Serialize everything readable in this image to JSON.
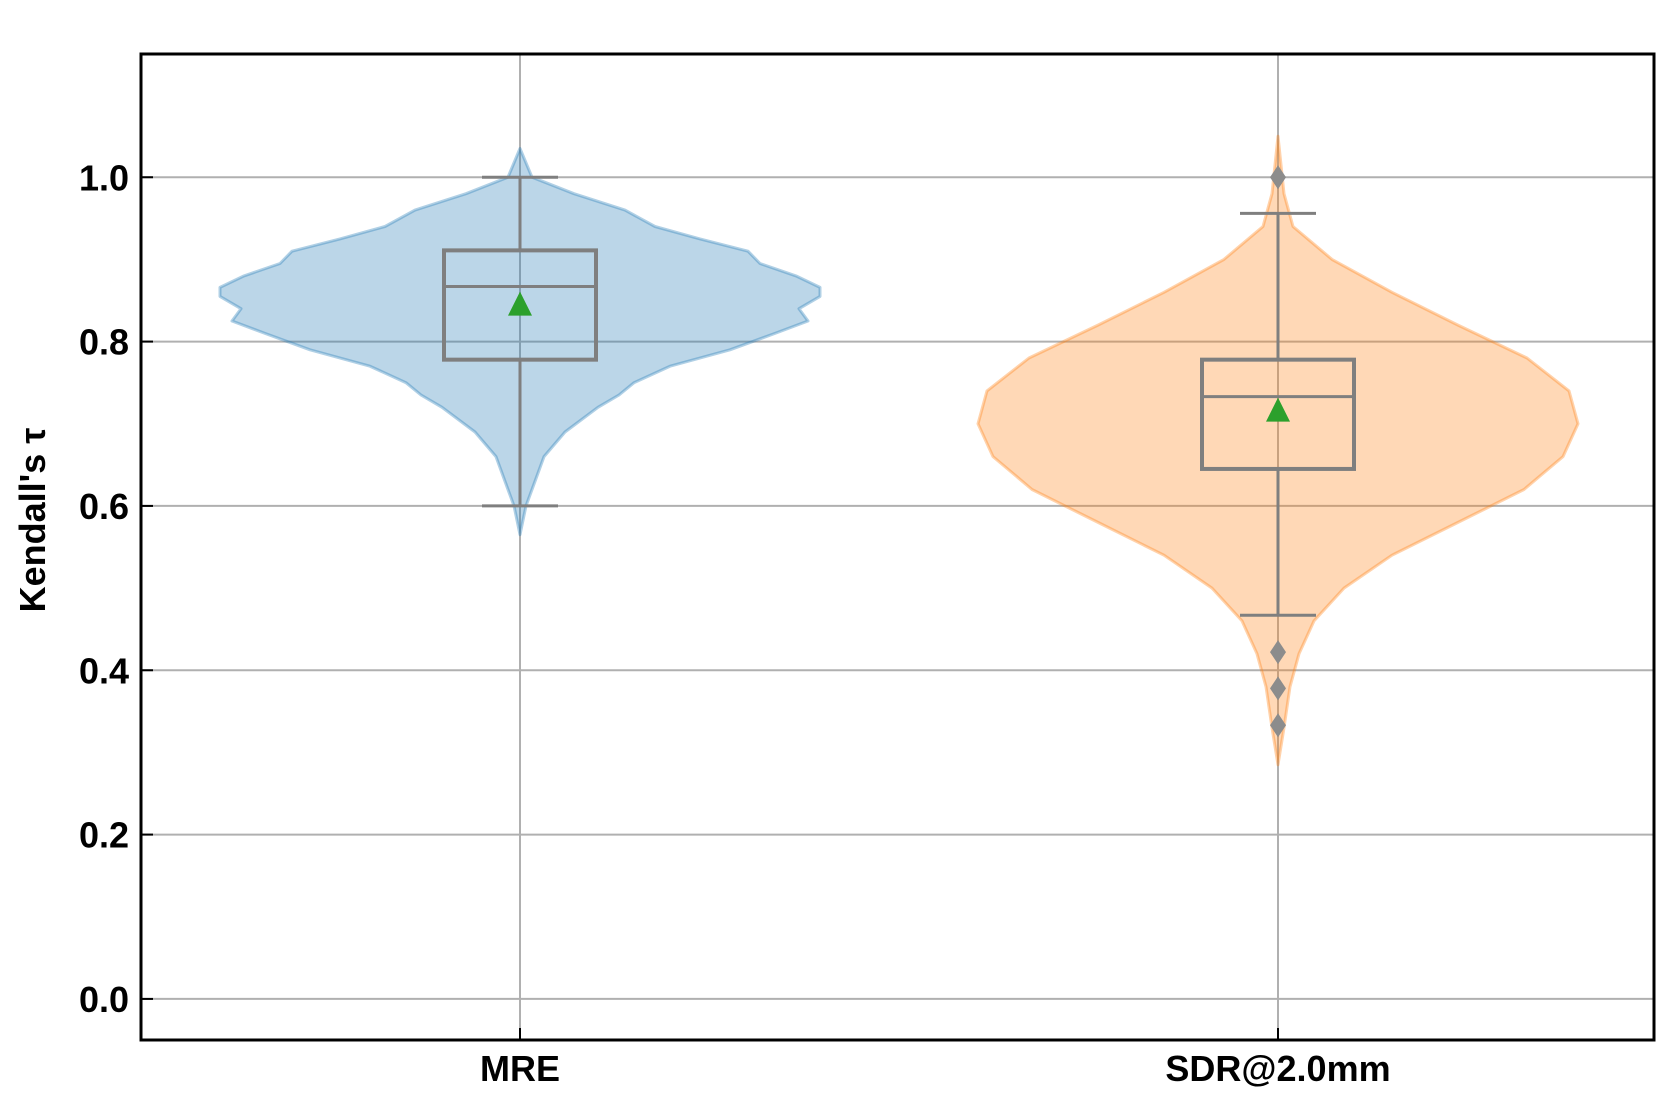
{
  "chart_data": {
    "type": "violin",
    "ylabel": "Kendall's τ",
    "xlabel": "",
    "title": "",
    "ylim": [
      -0.05,
      1.15
    ],
    "yticks": [
      0.0,
      0.2,
      0.4,
      0.6,
      0.8,
      1.0
    ],
    "grid": true,
    "categories": [
      "MRE",
      "SDR@2.0mm"
    ],
    "series": [
      {
        "category": "MRE",
        "color": "#1f77b4",
        "box": {
          "q1": 0.778,
          "median": 0.867,
          "q3": 0.911,
          "whisker_low": 0.6,
          "whisker_high": 1.0
        },
        "mean": 0.845,
        "outliers": [],
        "density": [
          [
            0.565,
            0.0
          ],
          [
            0.6,
            0.02
          ],
          [
            0.63,
            0.05
          ],
          [
            0.66,
            0.08
          ],
          [
            0.69,
            0.15
          ],
          [
            0.72,
            0.26
          ],
          [
            0.735,
            0.33
          ],
          [
            0.75,
            0.38
          ],
          [
            0.77,
            0.5
          ],
          [
            0.79,
            0.7
          ],
          [
            0.81,
            0.85
          ],
          [
            0.825,
            0.96
          ],
          [
            0.84,
            0.93
          ],
          [
            0.855,
            1.0
          ],
          [
            0.866,
            1.0
          ],
          [
            0.88,
            0.92
          ],
          [
            0.895,
            0.8
          ],
          [
            0.91,
            0.76
          ],
          [
            0.925,
            0.6
          ],
          [
            0.94,
            0.45
          ],
          [
            0.96,
            0.35
          ],
          [
            0.98,
            0.18
          ],
          [
            1.0,
            0.04
          ],
          [
            1.035,
            0.0
          ]
        ]
      },
      {
        "category": "SDR@2.0mm",
        "color": "#ff7f0e",
        "box": {
          "q1": 0.645,
          "median": 0.733,
          "q3": 0.778,
          "whisker_low": 0.467,
          "whisker_high": 0.956
        },
        "mean": 0.716,
        "outliers": [
          1.0,
          0.422,
          0.378,
          0.333
        ],
        "density": [
          [
            0.285,
            0.0
          ],
          [
            0.33,
            0.02
          ],
          [
            0.38,
            0.04
          ],
          [
            0.42,
            0.07
          ],
          [
            0.46,
            0.12
          ],
          [
            0.5,
            0.22
          ],
          [
            0.54,
            0.38
          ],
          [
            0.58,
            0.6
          ],
          [
            0.62,
            0.82
          ],
          [
            0.66,
            0.95
          ],
          [
            0.7,
            1.0
          ],
          [
            0.74,
            0.97
          ],
          [
            0.78,
            0.83
          ],
          [
            0.82,
            0.6
          ],
          [
            0.86,
            0.38
          ],
          [
            0.9,
            0.18
          ],
          [
            0.94,
            0.05
          ],
          [
            0.98,
            0.02
          ],
          [
            1.05,
            0.0
          ]
        ]
      }
    ]
  }
}
